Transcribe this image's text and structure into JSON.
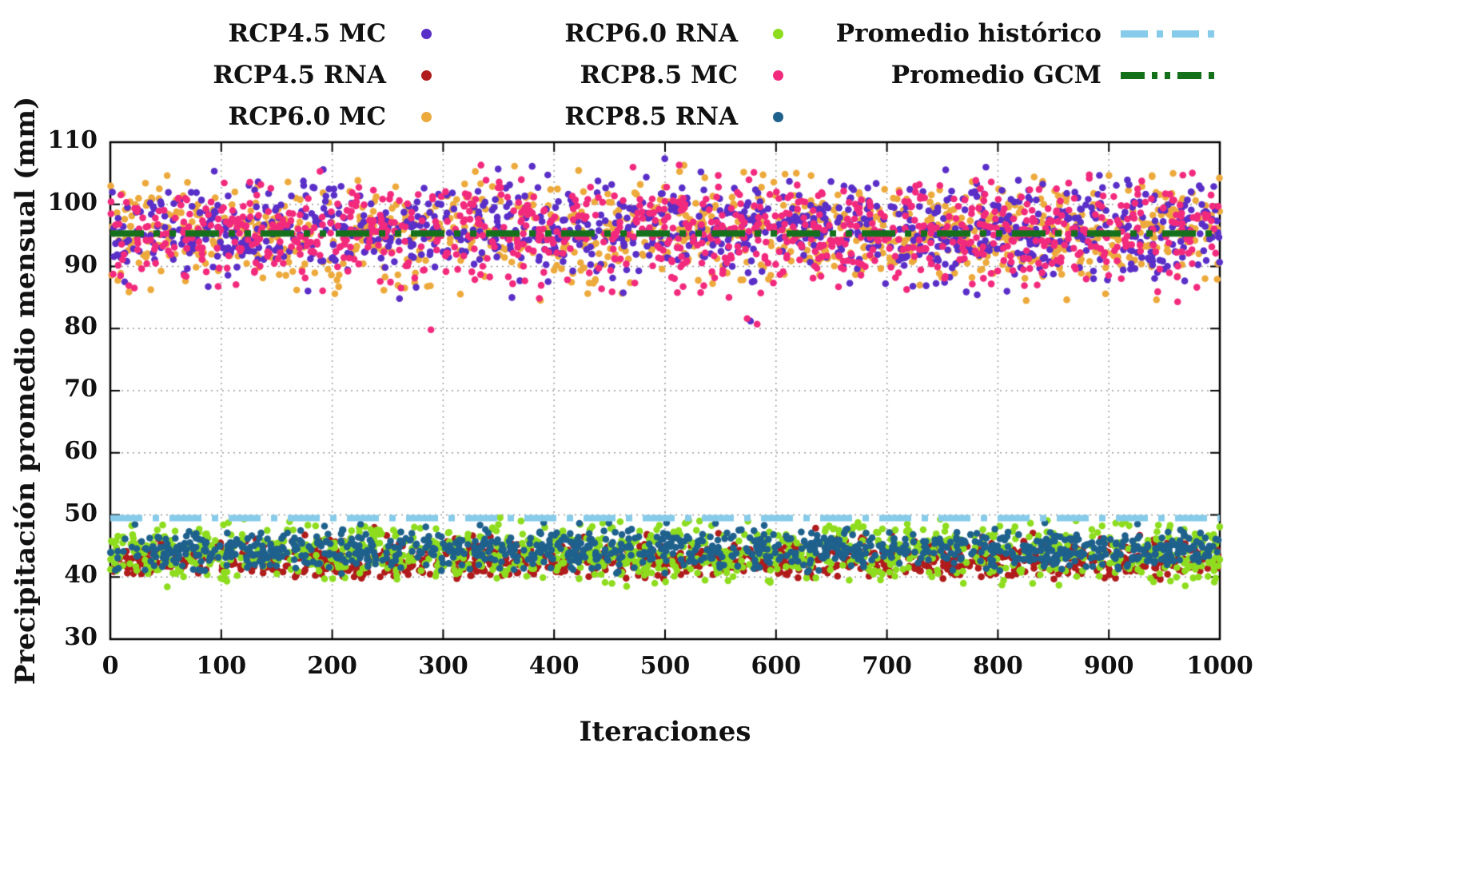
{
  "chart_data": {
    "type": "scatter",
    "title": "",
    "xlabel": "Iteraciones",
    "ylabel": "Precipitación promedio mensual (mm)",
    "xlim": [
      0,
      1000
    ],
    "ylim": [
      30,
      110
    ],
    "xticks": [
      0,
      100,
      200,
      300,
      400,
      500,
      600,
      700,
      800,
      900,
      1000
    ],
    "yticks": [
      30,
      40,
      50,
      60,
      70,
      80,
      90,
      100,
      110
    ],
    "grid": true,
    "legend_position": "top-outside",
    "marker_radius_px": 4.3,
    "points_per_series": 1000,
    "series": [
      {
        "name": "RCP4.5 MC",
        "color": "#5a2fc8",
        "cluster": "upper",
        "y_mean": 95.8,
        "y_sd": 3.9,
        "y_min": 84.0,
        "y_max": 107.5,
        "outliers": [
          [
            577,
            81.2
          ],
          [
            362,
            85.0
          ]
        ]
      },
      {
        "name": "RCP4.5 RNA",
        "color": "#b01b1b",
        "cluster": "lower",
        "y_mean": 42.7,
        "y_sd": 1.6,
        "y_min": 39.6,
        "y_max": 47.9,
        "outliers": [
          [
            238,
            48.0
          ],
          [
            906,
            39.8
          ]
        ]
      },
      {
        "name": "RCP6.0 MC",
        "color": "#edaa3c",
        "cluster": "upper",
        "y_mean": 95.6,
        "y_sd": 4.1,
        "y_min": 83.8,
        "y_max": 107.2,
        "outliers": [
          [
            168,
            86.2
          ]
        ]
      },
      {
        "name": "RCP6.0 RNA",
        "color": "#8edc1e",
        "cluster": "lower",
        "y_mean": 44.0,
        "y_sd": 2.4,
        "y_min": 38.4,
        "y_max": 49.6,
        "outliers": [
          [
            855,
            38.7
          ],
          [
            995,
            39.2
          ]
        ]
      },
      {
        "name": "RCP8.5 MC",
        "color": "#f22a7d",
        "cluster": "upper",
        "y_mean": 95.4,
        "y_sd": 4.0,
        "y_min": 83.5,
        "y_max": 107.6,
        "outliers": [
          [
            289,
            79.8
          ],
          [
            574,
            81.6
          ],
          [
            583,
            80.7
          ],
          [
            962,
            84.3
          ]
        ]
      },
      {
        "name": "RCP8.5 RNA",
        "color": "#1f618d",
        "cluster": "lower",
        "y_mean": 44.4,
        "y_sd": 1.7,
        "y_min": 40.5,
        "y_max": 48.8,
        "outliers": []
      }
    ],
    "reference_lines": [
      {
        "name": "Promedio histórico",
        "value": 49.5,
        "color": "#86cbe9",
        "pattern": "dash-dot"
      },
      {
        "name": "Promedio GCM",
        "value": 95.3,
        "color": "#15701c",
        "pattern": "dash-dot-dot"
      }
    ]
  }
}
